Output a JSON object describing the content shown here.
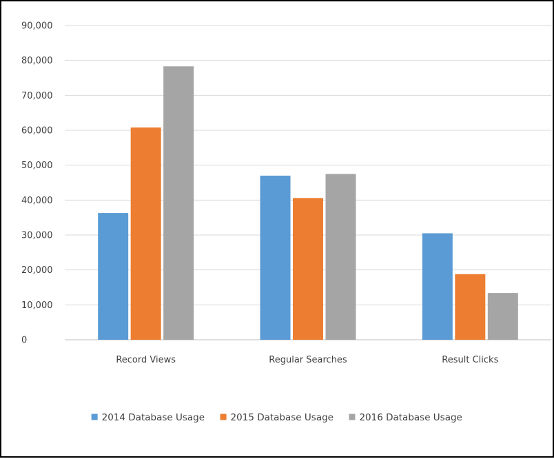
{
  "chart_data": {
    "type": "bar",
    "categories": [
      "Record Views",
      "Regular Searches",
      "Result Clicks"
    ],
    "series": [
      {
        "name": "2014 Database Usage",
        "color": "#5b9bd5",
        "values": [
          36300,
          47000,
          30500
        ]
      },
      {
        "name": "2015 Database Usage",
        "color": "#ed7d31",
        "values": [
          60800,
          40600,
          18800
        ]
      },
      {
        "name": "2016 Database Usage",
        "color": "#a5a5a5",
        "values": [
          78300,
          47500,
          13400
        ]
      }
    ],
    "ylim": [
      0,
      90000
    ],
    "yticks": [
      "0",
      "10,000",
      "20,000",
      "30,000",
      "40,000",
      "50,000",
      "60,000",
      "70,000",
      "80,000",
      "90,000"
    ],
    "grid": true,
    "legend": "bottom"
  }
}
